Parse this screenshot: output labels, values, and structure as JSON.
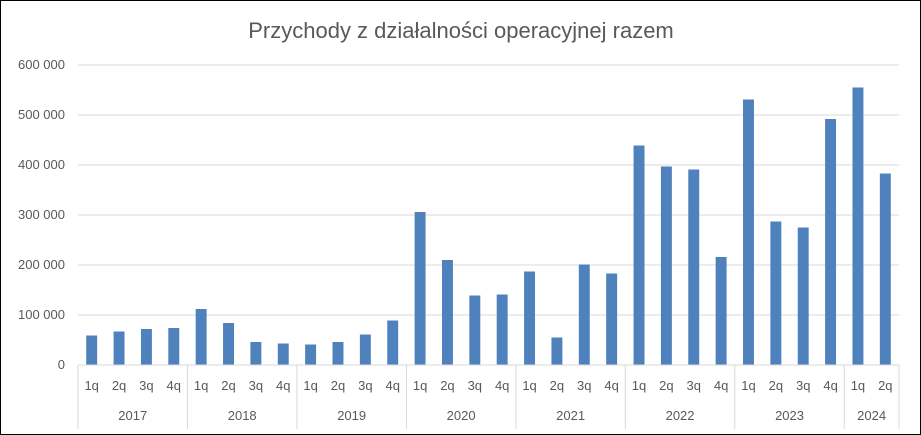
{
  "chart_data": {
    "type": "bar",
    "title": "Przychody z działalności operacyjnej razem",
    "xlabel": "",
    "ylabel": "",
    "ylim": [
      0,
      600000
    ],
    "yticks": [
      "0",
      "100 000",
      "200 000",
      "300 000",
      "400 000",
      "500 000",
      "600 000"
    ],
    "grid": true,
    "legend": "none",
    "bar_color": "#4f81bd",
    "groups": [
      {
        "year": "2017",
        "quarters": [
          "1q",
          "2q",
          "3q",
          "4q"
        ],
        "values": [
          59000,
          67000,
          72000,
          74000
        ]
      },
      {
        "year": "2018",
        "quarters": [
          "1q",
          "2q",
          "3q",
          "4q"
        ],
        "values": [
          112000,
          84000,
          46000,
          43000
        ]
      },
      {
        "year": "2019",
        "quarters": [
          "1q",
          "2q",
          "3q",
          "4q"
        ],
        "values": [
          41000,
          46000,
          61000,
          89000
        ]
      },
      {
        "year": "2020",
        "quarters": [
          "1q",
          "2q",
          "3q",
          "4q"
        ],
        "values": [
          306000,
          210000,
          139000,
          141000
        ]
      },
      {
        "year": "2021",
        "quarters": [
          "1q",
          "2q",
          "3q",
          "4q"
        ],
        "values": [
          187000,
          55000,
          201000,
          183000
        ]
      },
      {
        "year": "2022",
        "quarters": [
          "1q",
          "2q",
          "3q",
          "4q"
        ],
        "values": [
          439000,
          397000,
          391000,
          216000
        ]
      },
      {
        "year": "2023",
        "quarters": [
          "1q",
          "2q",
          "3q",
          "4q"
        ],
        "values": [
          531000,
          287000,
          275000,
          492000
        ]
      },
      {
        "year": "2024",
        "quarters": [
          "1q",
          "2q"
        ],
        "values": [
          555000,
          383000
        ]
      }
    ]
  }
}
